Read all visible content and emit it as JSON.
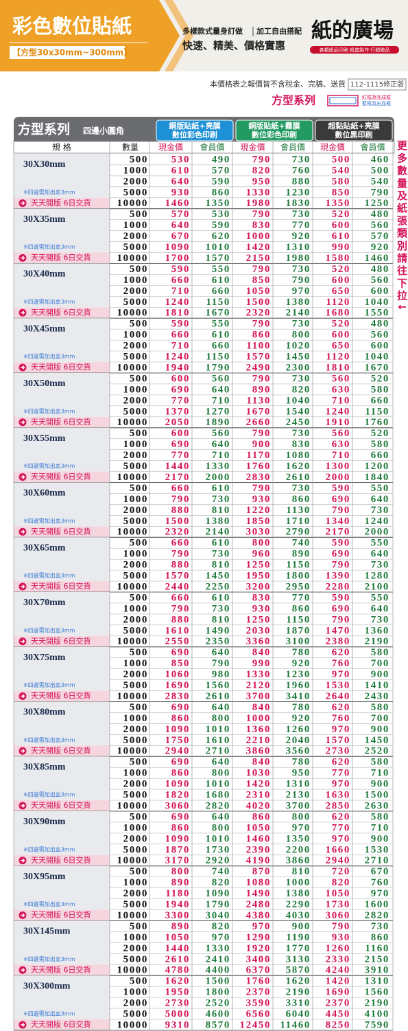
{
  "banner": {
    "title": "彩色數位貼紙",
    "size_range": "【方型30x30mm~300mm】",
    "slogan_a": "多樣款式量身訂做",
    "slogan_b": "加工自由搭配",
    "slogan_main": "快速、精美、價格實惠",
    "brand": "紙的廣場",
    "brand_sub": "各類紙品印刷‧紙盒製作‧行銷贈品"
  },
  "notice": {
    "text": "本價格表之報價皆不含稅金、完稿、送貨",
    "version": "112-1115修正版"
  },
  "series_label": {
    "title": "方型系列",
    "legend": [
      "紅框為完成框",
      "藍框為出血框"
    ]
  },
  "side_note": "更多數量及紙張類別請往下拉↓",
  "table": {
    "title": "方型系列",
    "subtitle": "四邊小圓角",
    "groups": [
      {
        "line1": "銅版貼紙+亮膜",
        "line2": "數位彩色印刷"
      },
      {
        "line1": "銅版貼紙+霧膜",
        "line2": "數位彩色印刷"
      },
      {
        "line1": "超黏貼紙+亮膜",
        "line2": "數位黑印刷"
      }
    ],
    "headers": {
      "spec": "規 格",
      "qty": "數量",
      "cash": "現金價",
      "member": "會員價"
    },
    "bleed_note": "※四邊需加出血3mm",
    "schedule": "天天開版 6日交貨",
    "quantities": [
      500,
      1000,
      2000,
      5000,
      10000
    ],
    "rows": [
      {
        "spec": "30X30mm",
        "prices": [
          [
            530,
            490,
            790,
            730,
            500,
            460
          ],
          [
            610,
            570,
            820,
            760,
            540,
            500
          ],
          [
            640,
            590,
            950,
            880,
            580,
            540
          ],
          [
            930,
            860,
            1330,
            1230,
            850,
            790
          ],
          [
            1460,
            1350,
            1980,
            1830,
            1350,
            1250
          ]
        ]
      },
      {
        "spec": "30X35mm",
        "prices": [
          [
            570,
            530,
            790,
            730,
            520,
            480
          ],
          [
            640,
            590,
            830,
            770,
            600,
            560
          ],
          [
            670,
            620,
            1000,
            920,
            610,
            570
          ],
          [
            1090,
            1010,
            1420,
            1310,
            990,
            920
          ],
          [
            1700,
            1570,
            2150,
            1980,
            1580,
            1460
          ]
        ]
      },
      {
        "spec": "30X40mm",
        "prices": [
          [
            590,
            550,
            790,
            730,
            520,
            480
          ],
          [
            660,
            610,
            850,
            790,
            600,
            560
          ],
          [
            710,
            660,
            1050,
            970,
            650,
            600
          ],
          [
            1240,
            1150,
            1500,
            1380,
            1120,
            1040
          ],
          [
            1810,
            1670,
            2320,
            2140,
            1680,
            1550
          ]
        ]
      },
      {
        "spec": "30X45mm",
        "prices": [
          [
            590,
            550,
            790,
            730,
            520,
            480
          ],
          [
            660,
            610,
            860,
            800,
            600,
            560
          ],
          [
            710,
            660,
            1100,
            1020,
            650,
            600
          ],
          [
            1240,
            1150,
            1570,
            1450,
            1120,
            1040
          ],
          [
            1940,
            1790,
            2490,
            2300,
            1810,
            1670
          ]
        ]
      },
      {
        "spec": "30X50mm",
        "prices": [
          [
            600,
            560,
            790,
            730,
            560,
            520
          ],
          [
            690,
            640,
            890,
            820,
            630,
            580
          ],
          [
            770,
            710,
            1130,
            1040,
            710,
            660
          ],
          [
            1370,
            1270,
            1670,
            1540,
            1240,
            1150
          ],
          [
            2050,
            1890,
            2660,
            2450,
            1910,
            1760
          ]
        ]
      },
      {
        "spec": "30X55mm",
        "prices": [
          [
            600,
            560,
            790,
            730,
            560,
            520
          ],
          [
            690,
            640,
            900,
            830,
            630,
            580
          ],
          [
            770,
            710,
            1170,
            1080,
            710,
            660
          ],
          [
            1440,
            1330,
            1760,
            1620,
            1300,
            1200
          ],
          [
            2170,
            2000,
            2830,
            2610,
            2000,
            1840
          ]
        ]
      },
      {
        "spec": "30X60mm",
        "prices": [
          [
            660,
            610,
            790,
            730,
            590,
            550
          ],
          [
            790,
            730,
            930,
            860,
            690,
            640
          ],
          [
            880,
            810,
            1220,
            1130,
            790,
            730
          ],
          [
            1500,
            1380,
            1850,
            1710,
            1340,
            1240
          ],
          [
            2320,
            2140,
            3030,
            2790,
            2170,
            2000
          ]
        ]
      },
      {
        "spec": "30X65mm",
        "prices": [
          [
            660,
            610,
            800,
            740,
            590,
            550
          ],
          [
            790,
            730,
            960,
            890,
            690,
            640
          ],
          [
            880,
            810,
            1250,
            1150,
            790,
            730
          ],
          [
            1570,
            1450,
            1950,
            1800,
            1390,
            1280
          ],
          [
            2440,
            2250,
            3200,
            2950,
            2280,
            2100
          ]
        ]
      },
      {
        "spec": "30X70mm",
        "prices": [
          [
            660,
            610,
            830,
            770,
            590,
            550
          ],
          [
            790,
            730,
            930,
            860,
            690,
            640
          ],
          [
            880,
            810,
            1250,
            1150,
            790,
            730
          ],
          [
            1610,
            1490,
            2030,
            1870,
            1470,
            1360
          ],
          [
            2550,
            2350,
            3360,
            3100,
            2380,
            2190
          ]
        ]
      },
      {
        "spec": "30X75mm",
        "prices": [
          [
            690,
            640,
            840,
            780,
            620,
            580
          ],
          [
            850,
            790,
            990,
            920,
            760,
            700
          ],
          [
            1060,
            980,
            1330,
            1230,
            970,
            900
          ],
          [
            1690,
            1560,
            2120,
            1960,
            1530,
            1410
          ],
          [
            2830,
            2610,
            3700,
            3410,
            2640,
            2430
          ]
        ]
      },
      {
        "spec": "30X80mm",
        "prices": [
          [
            690,
            640,
            840,
            780,
            620,
            580
          ],
          [
            860,
            800,
            1000,
            920,
            760,
            700
          ],
          [
            1090,
            1010,
            1360,
            1260,
            970,
            900
          ],
          [
            1750,
            1610,
            2210,
            2040,
            1570,
            1450
          ],
          [
            2940,
            2710,
            3860,
            3560,
            2730,
            2520
          ]
        ]
      },
      {
        "spec": "30X85mm",
        "prices": [
          [
            690,
            640,
            840,
            780,
            620,
            580
          ],
          [
            860,
            800,
            1030,
            950,
            770,
            710
          ],
          [
            1090,
            1010,
            1420,
            1310,
            970,
            900
          ],
          [
            1820,
            1680,
            2310,
            2130,
            1630,
            1500
          ],
          [
            3060,
            2820,
            4020,
            3700,
            2850,
            2630
          ]
        ]
      },
      {
        "spec": "30X90mm",
        "prices": [
          [
            690,
            640,
            860,
            800,
            620,
            580
          ],
          [
            860,
            800,
            1050,
            970,
            770,
            710
          ],
          [
            1090,
            1010,
            1460,
            1350,
            970,
            900
          ],
          [
            1870,
            1730,
            2390,
            2200,
            1660,
            1530
          ],
          [
            3170,
            2920,
            4190,
            3860,
            2940,
            2710
          ]
        ]
      },
      {
        "spec": "30X95mm",
        "prices": [
          [
            800,
            740,
            870,
            810,
            720,
            670
          ],
          [
            890,
            820,
            1080,
            1000,
            820,
            760
          ],
          [
            1180,
            1090,
            1490,
            1380,
            1050,
            970
          ],
          [
            1940,
            1790,
            2480,
            2290,
            1730,
            1600
          ],
          [
            3300,
            3040,
            4380,
            4030,
            3060,
            2820
          ]
        ]
      },
      {
        "spec": "30X145mm",
        "prices": [
          [
            890,
            820,
            970,
            900,
            790,
            730
          ],
          [
            1050,
            970,
            1290,
            1190,
            930,
            860
          ],
          [
            1440,
            1330,
            1920,
            1770,
            1260,
            1160
          ],
          [
            2610,
            2410,
            3400,
            3130,
            2330,
            2150
          ],
          [
            4780,
            4400,
            6370,
            5870,
            4240,
            3910
          ]
        ]
      },
      {
        "spec": "30X300mm",
        "prices": [
          [
            1620,
            1500,
            1760,
            1620,
            1420,
            1310
          ],
          [
            1950,
            1800,
            2370,
            2190,
            1690,
            1560
          ],
          [
            2730,
            2520,
            3590,
            3310,
            2370,
            2190
          ],
          [
            5000,
            4600,
            6560,
            6040,
            4450,
            4100
          ],
          [
            9310,
            8570,
            12450,
            11460,
            8250,
            7590
          ]
        ]
      }
    ]
  }
}
